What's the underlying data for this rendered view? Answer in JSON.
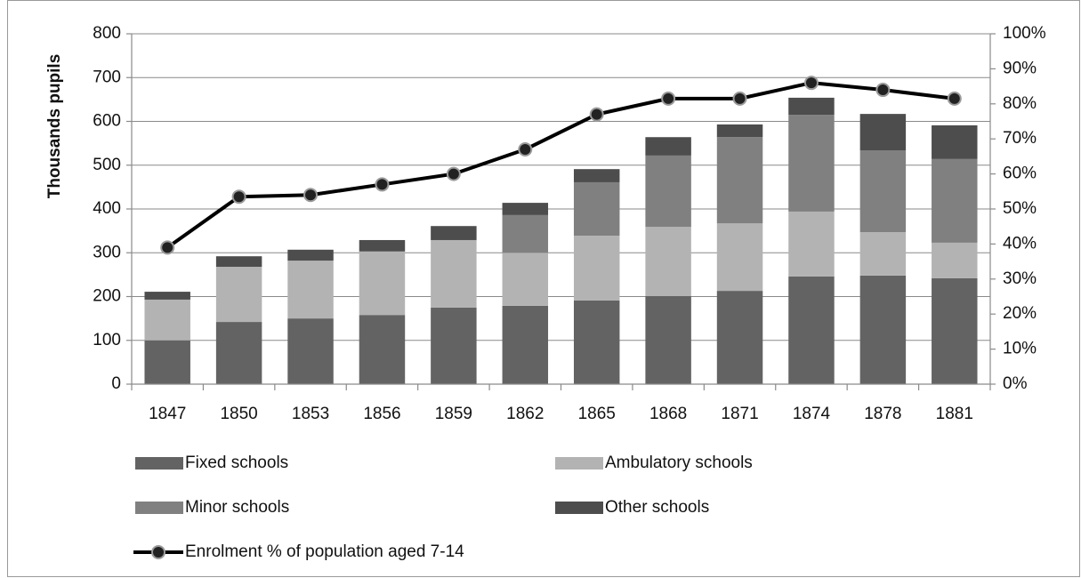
{
  "chart_data": {
    "type": "bar",
    "stacked": true,
    "y_label": "Thousands pupils",
    "categories": [
      "1847",
      "1850",
      "1853",
      "1856",
      "1859",
      "1862",
      "1865",
      "1868",
      "1871",
      "1874",
      "1878",
      "1881"
    ],
    "series": [
      {
        "name": "Fixed schools",
        "color": "#636363",
        "values": [
          100,
          142,
          150,
          158,
          175,
          179,
          191,
          201,
          213,
          246,
          248,
          242
        ]
      },
      {
        "name": "Ambulatory schools",
        "color": "#b3b3b3",
        "values": [
          93,
          126,
          132,
          145,
          154,
          121,
          148,
          158,
          154,
          148,
          99,
          81
        ]
      },
      {
        "name": "Minor schools",
        "color": "#808080",
        "values": [
          0,
          0,
          0,
          0,
          0,
          86,
          122,
          163,
          197,
          221,
          187,
          191
        ]
      },
      {
        "name": "Other schools",
        "color": "#4d4d4d",
        "values": [
          18,
          24,
          25,
          26,
          32,
          28,
          30,
          42,
          29,
          39,
          83,
          77
        ]
      },
      {
        "name": "Enrolment % of population aged 7-14",
        "type": "line",
        "axis": "y2",
        "color": "#000000",
        "values": [
          39,
          53.5,
          54,
          57,
          60,
          67,
          77,
          81.5,
          81.5,
          86,
          84,
          81.5
        ]
      }
    ],
    "ylim": [
      0,
      800
    ],
    "yticks": [
      0,
      100,
      200,
      300,
      400,
      500,
      600,
      700,
      800
    ],
    "y2lim": [
      0,
      100
    ],
    "y2ticks": [
      {
        "value": 0,
        "label": "0%"
      },
      {
        "value": 10,
        "label": "10%"
      },
      {
        "value": 20,
        "label": "20%"
      },
      {
        "value": 30,
        "label": "30%"
      },
      {
        "value": 40,
        "label": "40%"
      },
      {
        "value": 50,
        "label": "50%"
      },
      {
        "value": 60,
        "label": "60%"
      },
      {
        "value": 70,
        "label": "70%"
      },
      {
        "value": 80,
        "label": "80%"
      },
      {
        "value": 90,
        "label": "90%"
      },
      {
        "value": 100,
        "label": "100%"
      }
    ],
    "grid": true,
    "legend": "bottom"
  }
}
